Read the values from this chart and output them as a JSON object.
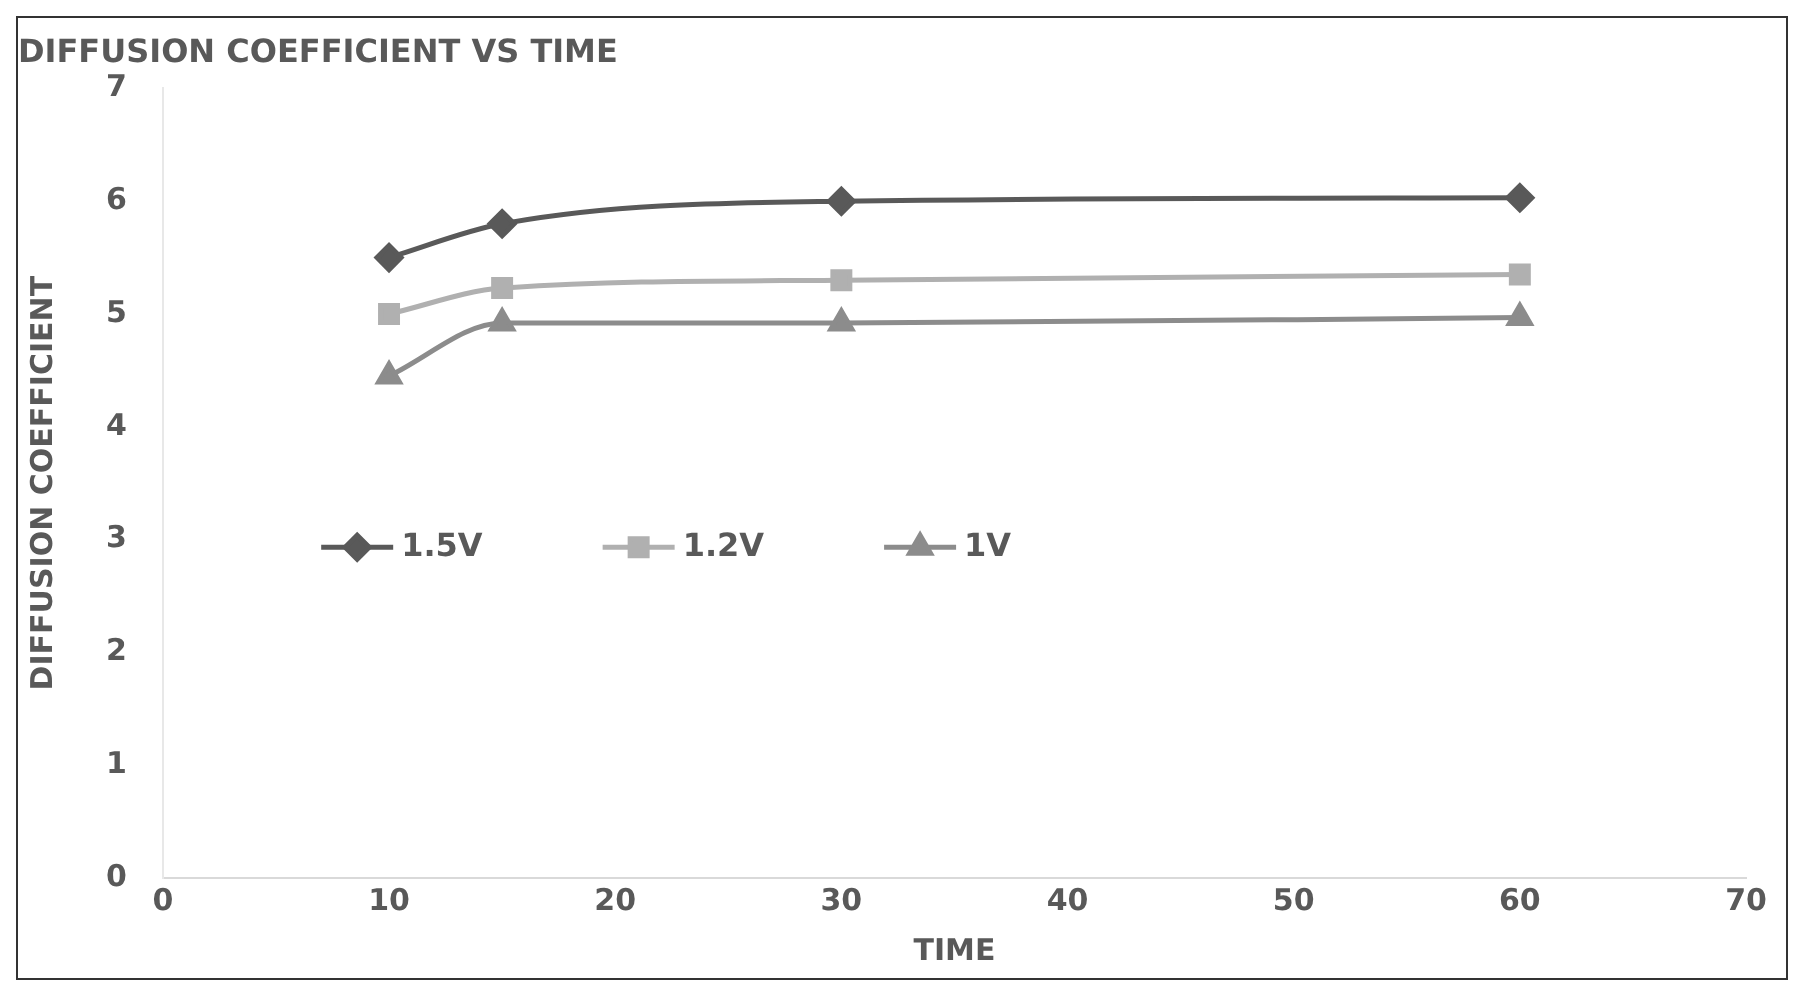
{
  "chart_data": {
    "type": "line",
    "title": "DIFFUSION COEFFICIENT VS TIME",
    "xlabel": "TIME",
    "ylabel": "DIFFUSION COEFFICIENT",
    "x": [
      10,
      15,
      30,
      60
    ],
    "series": [
      {
        "name": "1.5V",
        "color": "#595959",
        "marker": "diamond",
        "values": [
          5.5,
          5.8,
          6.0,
          6.03
        ]
      },
      {
        "name": "1.2V",
        "color": "#b0b0b0",
        "marker": "square",
        "values": [
          5.0,
          5.23,
          5.3,
          5.35
        ]
      },
      {
        "name": "1V",
        "color": "#8c8c8c",
        "marker": "triangle",
        "values": [
          4.45,
          4.92,
          4.92,
          4.97
        ]
      }
    ],
    "xlim": [
      0,
      70
    ],
    "xticks": [
      0,
      10,
      20,
      30,
      40,
      50,
      60,
      70
    ],
    "ylim": [
      0,
      7
    ],
    "yticks": [
      0,
      1,
      2,
      3,
      4,
      5,
      6,
      7
    ],
    "grid": false,
    "legend": "center left"
  }
}
